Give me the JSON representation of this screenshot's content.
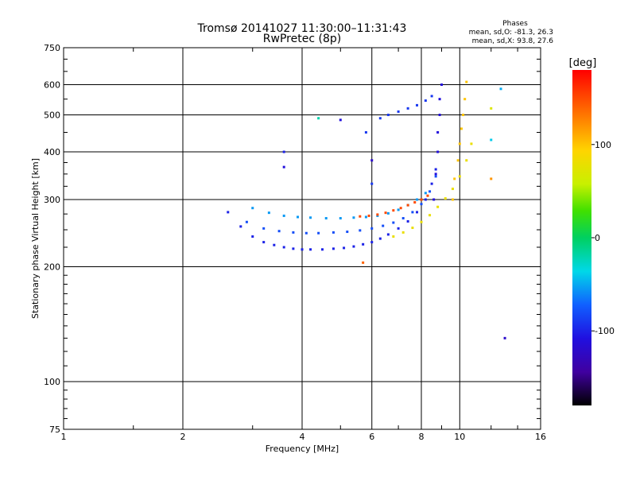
{
  "chart_data": {
    "type": "scatter",
    "title": "Tromsø 20141027 11:30:00–11:31:43",
    "subtitle": "RwPretec (8p)",
    "xlabel": "Frequency [MHz]",
    "ylabel": "Stationary phase Virtual Height [km]",
    "x_scale": "log",
    "y_scale": "log",
    "xlim": [
      1,
      16
    ],
    "ylim": [
      75,
      750
    ],
    "grid": true,
    "x_ticks": [
      1,
      2,
      4,
      6,
      8,
      10,
      16
    ],
    "x_tick_labels": [
      "1",
      "2",
      "4",
      "6",
      "8",
      "10",
      "16"
    ],
    "y_ticks": [
      75,
      100,
      200,
      300,
      400,
      500,
      600,
      750
    ],
    "y_tick_labels": [
      "75",
      "100",
      "200",
      "300",
      "400",
      "500",
      "600",
      "750"
    ],
    "stats": {
      "heading": "Phases",
      "line1": "mean, sd,O: -81.3, 26.3",
      "line2": "mean, sd,X:  93.8, 27.6"
    },
    "colorbar": {
      "label": "[deg]",
      "range": [
        -180,
        180
      ],
      "ticks": [
        100,
        0,
        -100
      ],
      "tick_labels": [
        "100",
        "0",
        "-100"
      ],
      "colormap": "rainbow"
    },
    "series": [
      {
        "x": [
          2.6,
          2.8,
          3.0,
          3.2,
          3.4,
          3.6,
          3.8,
          4.0,
          4.2,
          4.5,
          4.8,
          5.1,
          5.4,
          5.7,
          6.0,
          6.3,
          6.6,
          7.0,
          7.4,
          7.8,
          8.2,
          8.5,
          8.7
        ],
        "y": [
          278,
          255,
          240,
          232,
          228,
          225,
          223,
          222,
          222,
          222,
          223,
          224,
          226,
          229,
          232,
          237,
          243,
          252,
          263,
          278,
          300,
          330,
          360
        ],
        "phase": -100
      },
      {
        "x": [
          2.9,
          3.2,
          3.5,
          3.8,
          4.1,
          4.4,
          4.8,
          5.2,
          5.6,
          6.0,
          6.4,
          6.8,
          7.2,
          7.6,
          8.0,
          8.4,
          8.7
        ],
        "y": [
          262,
          252,
          248,
          246,
          245,
          245,
          246,
          247,
          249,
          252,
          256,
          261,
          268,
          278,
          292,
          315,
          345
        ],
        "phase": -80
      },
      {
        "x": [
          3.0,
          3.3,
          3.6,
          3.9,
          4.2,
          4.6,
          5.0,
          5.4,
          5.8,
          6.2,
          6.6,
          7.0,
          7.4,
          7.8,
          8.2
        ],
        "y": [
          285,
          277,
          272,
          270,
          269,
          268,
          268,
          269,
          270,
          272,
          276,
          282,
          290,
          300,
          312
        ],
        "phase": -55
      },
      {
        "x": [
          5.6,
          5.9,
          6.2,
          6.5,
          6.8,
          7.1,
          7.4,
          7.7,
          8.0,
          8.3
        ],
        "y": [
          271,
          272,
          274,
          277,
          281,
          285,
          290,
          295,
          300,
          307
        ],
        "phase": 150
      },
      {
        "x": [
          6.8,
          7.2,
          7.6,
          8.0,
          8.4,
          8.8,
          9.2,
          9.6,
          10.0,
          10.4,
          10.7
        ],
        "y": [
          240,
          246,
          253,
          262,
          273,
          287,
          302,
          320,
          345,
          380,
          420
        ],
        "phase": 80
      },
      {
        "x": [
          8.6,
          8.7,
          8.8,
          8.8,
          8.9,
          8.9,
          9.0
        ],
        "y": [
          300,
          350,
          400,
          450,
          500,
          550,
          600
        ],
        "phase": -110
      },
      {
        "x": [
          9.6,
          9.7,
          9.9,
          10.0,
          10.1,
          10.2,
          10.3,
          10.4
        ],
        "y": [
          300,
          340,
          380,
          420,
          460,
          500,
          550,
          610
        ],
        "phase": 100
      },
      {
        "x": [
          6.3,
          6.6,
          7.0,
          7.4,
          7.8,
          8.2,
          8.5
        ],
        "y": [
          490,
          500,
          510,
          520,
          530,
          545,
          560
        ],
        "phase": -90
      }
    ],
    "isolated_points": [
      {
        "x": 3.6,
        "y": 400,
        "phase": -100
      },
      {
        "x": 3.6,
        "y": 365,
        "phase": -110
      },
      {
        "x": 4.4,
        "y": 490,
        "phase": -20
      },
      {
        "x": 5.0,
        "y": 485,
        "phase": -110
      },
      {
        "x": 5.8,
        "y": 450,
        "phase": -90
      },
      {
        "x": 6.0,
        "y": 330,
        "phase": -90
      },
      {
        "x": 6.0,
        "y": 380,
        "phase": -120
      },
      {
        "x": 5.7,
        "y": 205,
        "phase": 140
      },
      {
        "x": 12.0,
        "y": 520,
        "phase": 70
      },
      {
        "x": 12.0,
        "y": 430,
        "phase": -40
      },
      {
        "x": 12.0,
        "y": 340,
        "phase": 120
      },
      {
        "x": 12.7,
        "y": 585,
        "phase": -50
      },
      {
        "x": 13.0,
        "y": 130,
        "phase": -120
      }
    ]
  }
}
